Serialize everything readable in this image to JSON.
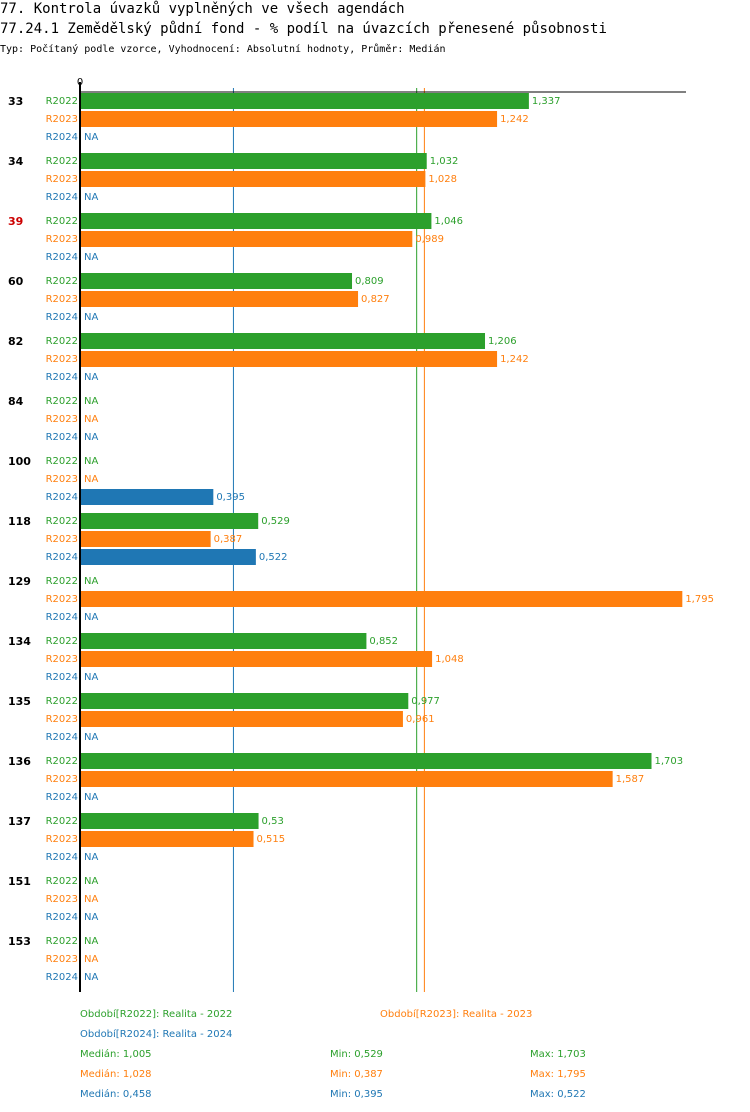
{
  "header": {
    "title": "77. Kontrola úvazků vyplněných ve všech agendách",
    "subtitle": "77.24.1 Zemědělský půdní fond - % podíl na úvazcích přenesené působnosti",
    "type_line": "Typ: Počítaný podle vzorce, Vyhodnocení: Absolutní hodnoty, Průměr: Medián"
  },
  "colors": {
    "R2022": "#2ca02c",
    "R2023": "#ff7f0e",
    "R2024": "#1f77b4",
    "highlight": "#cc0000"
  },
  "chart_data": {
    "type": "bar",
    "orientation": "horizontal",
    "axis_zero_label": "0",
    "xlim": [
      0,
      1.82
    ],
    "na_label": "NA",
    "highlighted_category": "39",
    "categories": [
      "33",
      "34",
      "39",
      "60",
      "82",
      "84",
      "100",
      "118",
      "129",
      "134",
      "135",
      "136",
      "137",
      "151",
      "153"
    ],
    "series": [
      {
        "name": "R2022",
        "values": [
          1.337,
          1.032,
          1.046,
          0.809,
          1.206,
          null,
          null,
          0.529,
          null,
          0.852,
          0.977,
          1.703,
          0.53,
          null,
          null
        ],
        "labels": [
          "1,337",
          "1,032",
          "1,046",
          "0,809",
          "1,206",
          null,
          null,
          "0,529",
          null,
          "0,852",
          "0,977",
          "1,703",
          "0,53",
          null,
          null
        ]
      },
      {
        "name": "R2023",
        "values": [
          1.242,
          1.028,
          0.989,
          0.827,
          1.242,
          null,
          null,
          0.387,
          1.795,
          1.048,
          0.961,
          1.587,
          0.515,
          null,
          null
        ],
        "labels": [
          "1,242",
          "1,028",
          "0,989",
          "0,827",
          "1,242",
          null,
          null,
          "0,387",
          "1,795",
          "1,048",
          "0,961",
          "1,587",
          "0,515",
          null,
          null
        ]
      },
      {
        "name": "R2024",
        "values": [
          null,
          null,
          null,
          null,
          null,
          null,
          0.395,
          0.522,
          null,
          null,
          null,
          null,
          null,
          null,
          null
        ],
        "labels": [
          null,
          null,
          null,
          null,
          null,
          null,
          "0,395",
          "0,522",
          null,
          null,
          null,
          null,
          null,
          null,
          null
        ]
      }
    ],
    "median_lines": {
      "R2022": 1.005,
      "R2023": 1.028,
      "R2024": 0.458
    }
  },
  "legend": {
    "period_2022": "Období[R2022]: Realita - 2022",
    "period_2023": "Období[R2023]: Realita - 2023",
    "period_2024": "Období[R2024]: Realita - 2024",
    "stats": [
      {
        "series": "R2022",
        "median": "Medián: 1,005",
        "min": "Min: 0,529",
        "max": "Max: 1,703"
      },
      {
        "series": "R2023",
        "median": "Medián: 1,028",
        "min": "Min: 0,387",
        "max": "Max: 1,795"
      },
      {
        "series": "R2024",
        "median": "Medián: 0,458",
        "min": "Min: 0,395",
        "max": "Max: 0,522"
      }
    ]
  }
}
